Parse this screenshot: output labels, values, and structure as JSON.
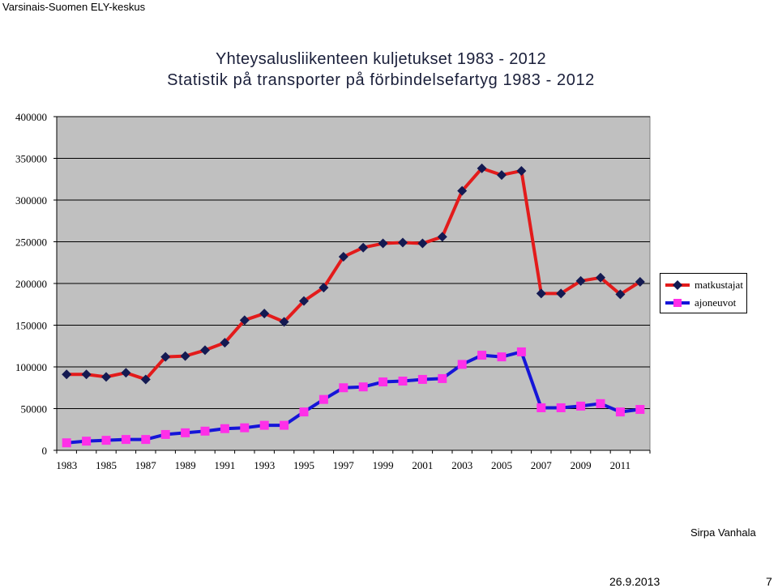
{
  "organization": "Varsinais-Suomen ELY-keskus",
  "footer": {
    "author": "Sirpa Vanhala",
    "date": "26.9.2013",
    "page": "7"
  },
  "chart_data": {
    "type": "line",
    "title": "Yhteysalusliikenteen kuljetukset 1983 - 2012",
    "subtitle": "Statistik på transporter på förbindelsefartyg 1983 - 2012",
    "x": [
      1983,
      1984,
      1985,
      1986,
      1987,
      1988,
      1989,
      1990,
      1991,
      1992,
      1993,
      1994,
      1995,
      1996,
      1997,
      1998,
      1999,
      2000,
      2001,
      2002,
      2003,
      2004,
      2005,
      2006,
      2007,
      2008,
      2009,
      2010,
      2011,
      2012
    ],
    "x_tick_labels": [
      "1983",
      "1985",
      "1987",
      "1989",
      "1991",
      "1993",
      "1995",
      "1997",
      "1999",
      "2001",
      "2003",
      "2005",
      "2007",
      "2009",
      "2011"
    ],
    "y_tick_labels": [
      "0",
      "50000",
      "100000",
      "150000",
      "200000",
      "250000",
      "300000",
      "350000",
      "400000"
    ],
    "ylim": [
      0,
      400000
    ],
    "grid": "horizontal",
    "legend_position": "right",
    "series": [
      {
        "name": "matkustajat",
        "color": "#e31b1b",
        "marker_color": "#141a52",
        "marker": "diamond",
        "values": [
          91000,
          91000,
          88000,
          93000,
          85000,
          112000,
          113000,
          120000,
          129000,
          156000,
          164000,
          154000,
          179000,
          195000,
          232000,
          243000,
          248000,
          249000,
          248000,
          256000,
          311000,
          338000,
          330000,
          335000,
          188000,
          188000,
          203000,
          207000,
          187000,
          202000
        ]
      },
      {
        "name": "ajoneuvot",
        "color": "#1515d8",
        "marker_color": "#ff2fe8",
        "marker": "square",
        "values": [
          9000,
          11000,
          12000,
          13000,
          13000,
          19000,
          21000,
          23000,
          26000,
          27000,
          30000,
          30000,
          46000,
          61000,
          75000,
          76000,
          82000,
          83000,
          85000,
          86000,
          103000,
          114000,
          112000,
          118000,
          51000,
          51000,
          53000,
          56000,
          46000,
          49000
        ]
      }
    ]
  }
}
